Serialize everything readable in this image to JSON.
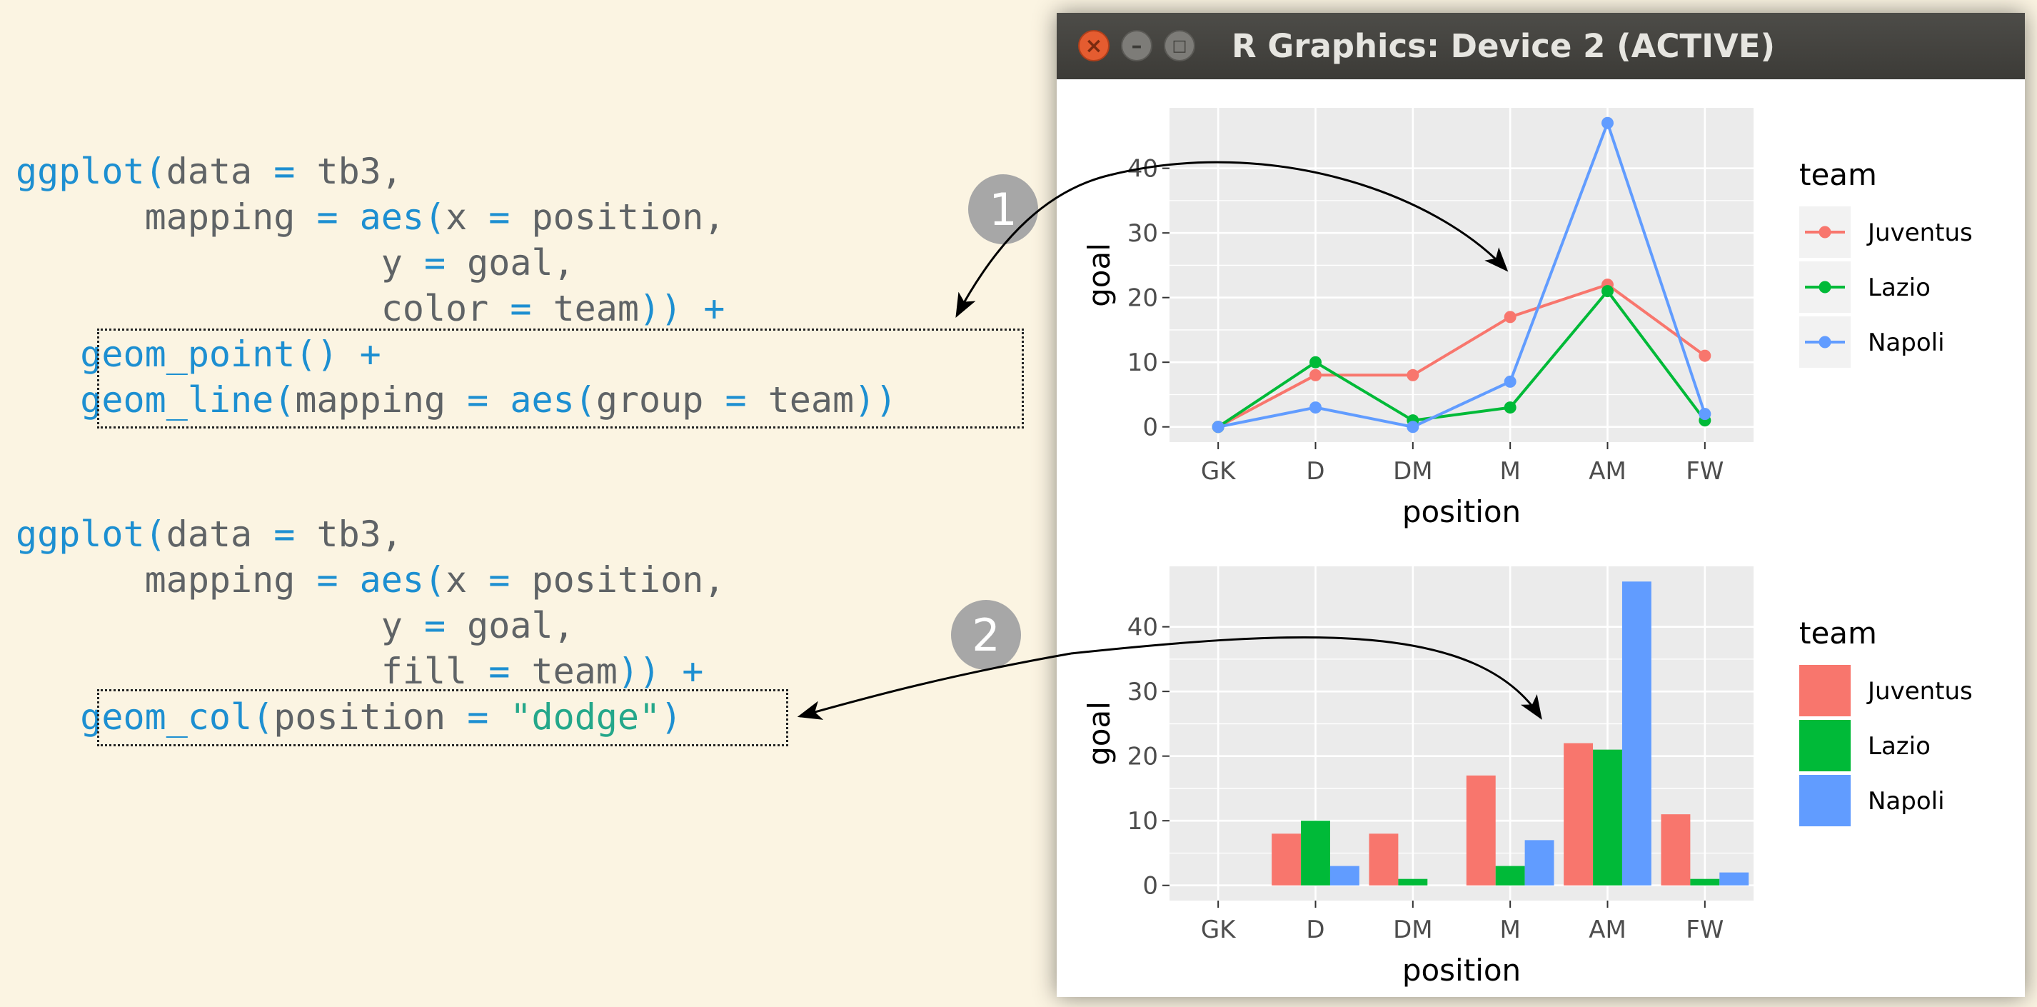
{
  "code_blocks": [
    {
      "lines": [
        [
          [
            "fn",
            "ggplot"
          ],
          [
            "paren",
            "("
          ],
          [
            "plain",
            "data "
          ],
          [
            "op",
            "="
          ],
          [
            "plain",
            " tb3,"
          ]
        ],
        [
          [
            "plain",
            "      mapping "
          ],
          [
            "op",
            "="
          ],
          [
            "fn",
            " aes"
          ],
          [
            "paren",
            "("
          ],
          [
            "plain",
            "x "
          ],
          [
            "op",
            "="
          ],
          [
            "plain",
            " position,"
          ]
        ],
        [
          [
            "plain",
            "                 y "
          ],
          [
            "op",
            "="
          ],
          [
            "plain",
            " goal,"
          ]
        ],
        [
          [
            "plain",
            "                 color "
          ],
          [
            "op",
            "="
          ],
          [
            "plain",
            " team"
          ],
          [
            "paren",
            "))"
          ],
          [
            "op",
            " +"
          ]
        ],
        [
          [
            "fn",
            "   geom_point"
          ],
          [
            "paren",
            "()"
          ],
          [
            "op",
            " +"
          ]
        ],
        [
          [
            "fn",
            "   geom_line"
          ],
          [
            "paren",
            "("
          ],
          [
            "plain",
            "mapping "
          ],
          [
            "op",
            "="
          ],
          [
            "fn",
            " aes"
          ],
          [
            "paren",
            "("
          ],
          [
            "plain",
            "group "
          ],
          [
            "op",
            "="
          ],
          [
            "plain",
            " team"
          ],
          [
            "paren",
            "))"
          ]
        ]
      ]
    },
    {
      "lines": [
        [
          [
            "fn",
            "ggplot"
          ],
          [
            "paren",
            "("
          ],
          [
            "plain",
            "data "
          ],
          [
            "op",
            "="
          ],
          [
            "plain",
            " tb3,"
          ]
        ],
        [
          [
            "plain",
            "      mapping "
          ],
          [
            "op",
            "="
          ],
          [
            "fn",
            " aes"
          ],
          [
            "paren",
            "("
          ],
          [
            "plain",
            "x "
          ],
          [
            "op",
            "="
          ],
          [
            "plain",
            " position,"
          ]
        ],
        [
          [
            "plain",
            "                 y "
          ],
          [
            "op",
            "="
          ],
          [
            "plain",
            " goal,"
          ]
        ],
        [
          [
            "plain",
            "                 fill "
          ],
          [
            "op",
            "="
          ],
          [
            "plain",
            " team"
          ],
          [
            "paren",
            "))"
          ],
          [
            "op",
            " +"
          ]
        ],
        [
          [
            "fn",
            "   geom_col"
          ],
          [
            "paren",
            "("
          ],
          [
            "plain",
            "position "
          ],
          [
            "op",
            "="
          ],
          [
            "str",
            " \"dodge\""
          ],
          [
            "paren",
            ")"
          ]
        ]
      ]
    }
  ],
  "badges": [
    "1",
    "2"
  ],
  "window": {
    "title": "R Graphics: Device 2 (ACTIVE)",
    "close_glyph": "×",
    "minimize_glyph": "–",
    "maximize_glyph": "□"
  },
  "colors": {
    "Juventus": "#f8766d",
    "Lazio": "#00ba38",
    "Napoli": "#619cff",
    "panel_bg": "#ebebeb",
    "grid": "#ffffff",
    "code_keyword": "#1d8fd1",
    "code_string": "#24a78a",
    "code_text": "#5f6366",
    "page_bg": "#fbf4e2"
  },
  "chart_data": [
    {
      "type": "line",
      "categories": [
        "GK",
        "D",
        "DM",
        "M",
        "AM",
        "FW"
      ],
      "series": [
        {
          "name": "Juventus",
          "values": [
            0,
            8,
            8,
            17,
            22,
            11
          ]
        },
        {
          "name": "Lazio",
          "values": [
            0,
            10,
            1,
            3,
            21,
            1
          ]
        },
        {
          "name": "Napoli",
          "values": [
            0,
            3,
            0,
            7,
            47,
            2
          ]
        }
      ],
      "xlabel": "position",
      "ylabel": "goal",
      "yticks": [
        0,
        10,
        20,
        30,
        40
      ],
      "ylim": [
        -2.35,
        49.35
      ],
      "legend_title": "team",
      "legend_position": "right",
      "grid": true
    },
    {
      "type": "bar",
      "categories": [
        "GK",
        "D",
        "DM",
        "M",
        "AM",
        "FW"
      ],
      "series": [
        {
          "name": "Juventus",
          "values": [
            null,
            8,
            8,
            17,
            22,
            11
          ]
        },
        {
          "name": "Lazio",
          "values": [
            null,
            10,
            1,
            3,
            21,
            1
          ]
        },
        {
          "name": "Napoli",
          "values": [
            null,
            3,
            null,
            7,
            47,
            2
          ]
        }
      ],
      "xlabel": "position",
      "ylabel": "goal",
      "yticks": [
        0,
        10,
        20,
        30,
        40
      ],
      "ylim": [
        -2.35,
        49.35
      ],
      "legend_title": "team",
      "legend_position": "right",
      "grid": true
    }
  ]
}
